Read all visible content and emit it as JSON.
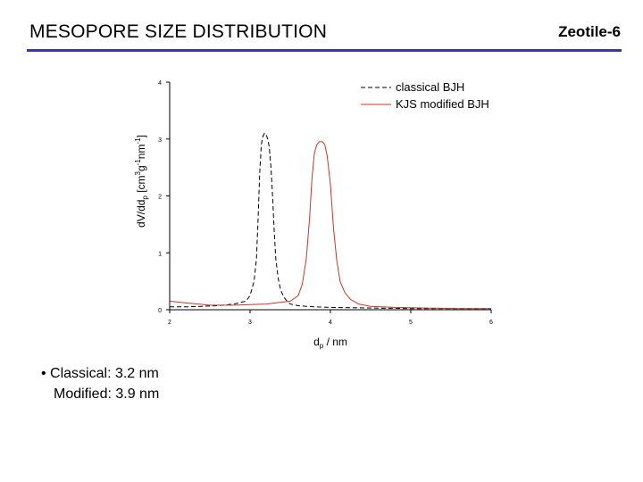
{
  "slide": {
    "title": "MESOPORE SIZE DISTRIBUTION",
    "corner_label": "Zeotile-6",
    "rule_color": "#3a3a9a"
  },
  "notes": {
    "line1": "• Classical: 3.2 nm",
    "line2": "Modified: 3.9 nm"
  },
  "chart_data": {
    "type": "line",
    "title": "",
    "xlabel": "d_p / nm",
    "ylabel": "dV/dd_p [cm^3 g^-1 nm^-1]",
    "xlim": [
      2,
      6
    ],
    "ylim": [
      0,
      4
    ],
    "xticks": [
      "2",
      "3",
      "4",
      "5",
      "6"
    ],
    "yticks": [
      "0",
      "1",
      "2",
      "3",
      "4"
    ],
    "grid": false,
    "legend": "top-right",
    "series": [
      {
        "name": "classical BJH",
        "color": "#000000",
        "dash": true,
        "x": [
          2.0,
          2.2,
          2.4,
          2.6,
          2.8,
          2.95,
          3.0,
          3.05,
          3.08,
          3.1,
          3.12,
          3.14,
          3.16,
          3.18,
          3.2,
          3.22,
          3.24,
          3.26,
          3.28,
          3.3,
          3.32,
          3.35,
          3.38,
          3.42,
          3.46,
          3.5,
          3.6,
          3.8,
          4.0,
          4.5,
          5.0,
          5.5,
          6.0
        ],
        "y": [
          0.05,
          0.05,
          0.06,
          0.07,
          0.1,
          0.15,
          0.25,
          0.5,
          0.9,
          1.6,
          2.4,
          2.9,
          3.05,
          3.1,
          3.08,
          3.0,
          2.85,
          2.5,
          2.0,
          1.4,
          0.9,
          0.55,
          0.35,
          0.22,
          0.15,
          0.1,
          0.07,
          0.05,
          0.04,
          0.03,
          0.02,
          0.02,
          0.02
        ]
      },
      {
        "name": "KJS modified BJH",
        "color": "#c0392b",
        "dash": false,
        "x": [
          2.0,
          2.2,
          2.5,
          2.8,
          3.2,
          3.5,
          3.6,
          3.65,
          3.7,
          3.74,
          3.77,
          3.8,
          3.83,
          3.86,
          3.9,
          3.93,
          3.96,
          4.0,
          4.04,
          4.08,
          4.12,
          4.18,
          4.25,
          4.35,
          4.5,
          4.8,
          5.2,
          5.6,
          6.0
        ],
        "y": [
          0.15,
          0.12,
          0.08,
          0.08,
          0.1,
          0.15,
          0.25,
          0.45,
          0.9,
          1.6,
          2.3,
          2.75,
          2.9,
          2.95,
          2.95,
          2.9,
          2.7,
          2.2,
          1.4,
          0.85,
          0.5,
          0.3,
          0.18,
          0.1,
          0.06,
          0.04,
          0.03,
          0.02,
          0.02
        ]
      }
    ]
  }
}
